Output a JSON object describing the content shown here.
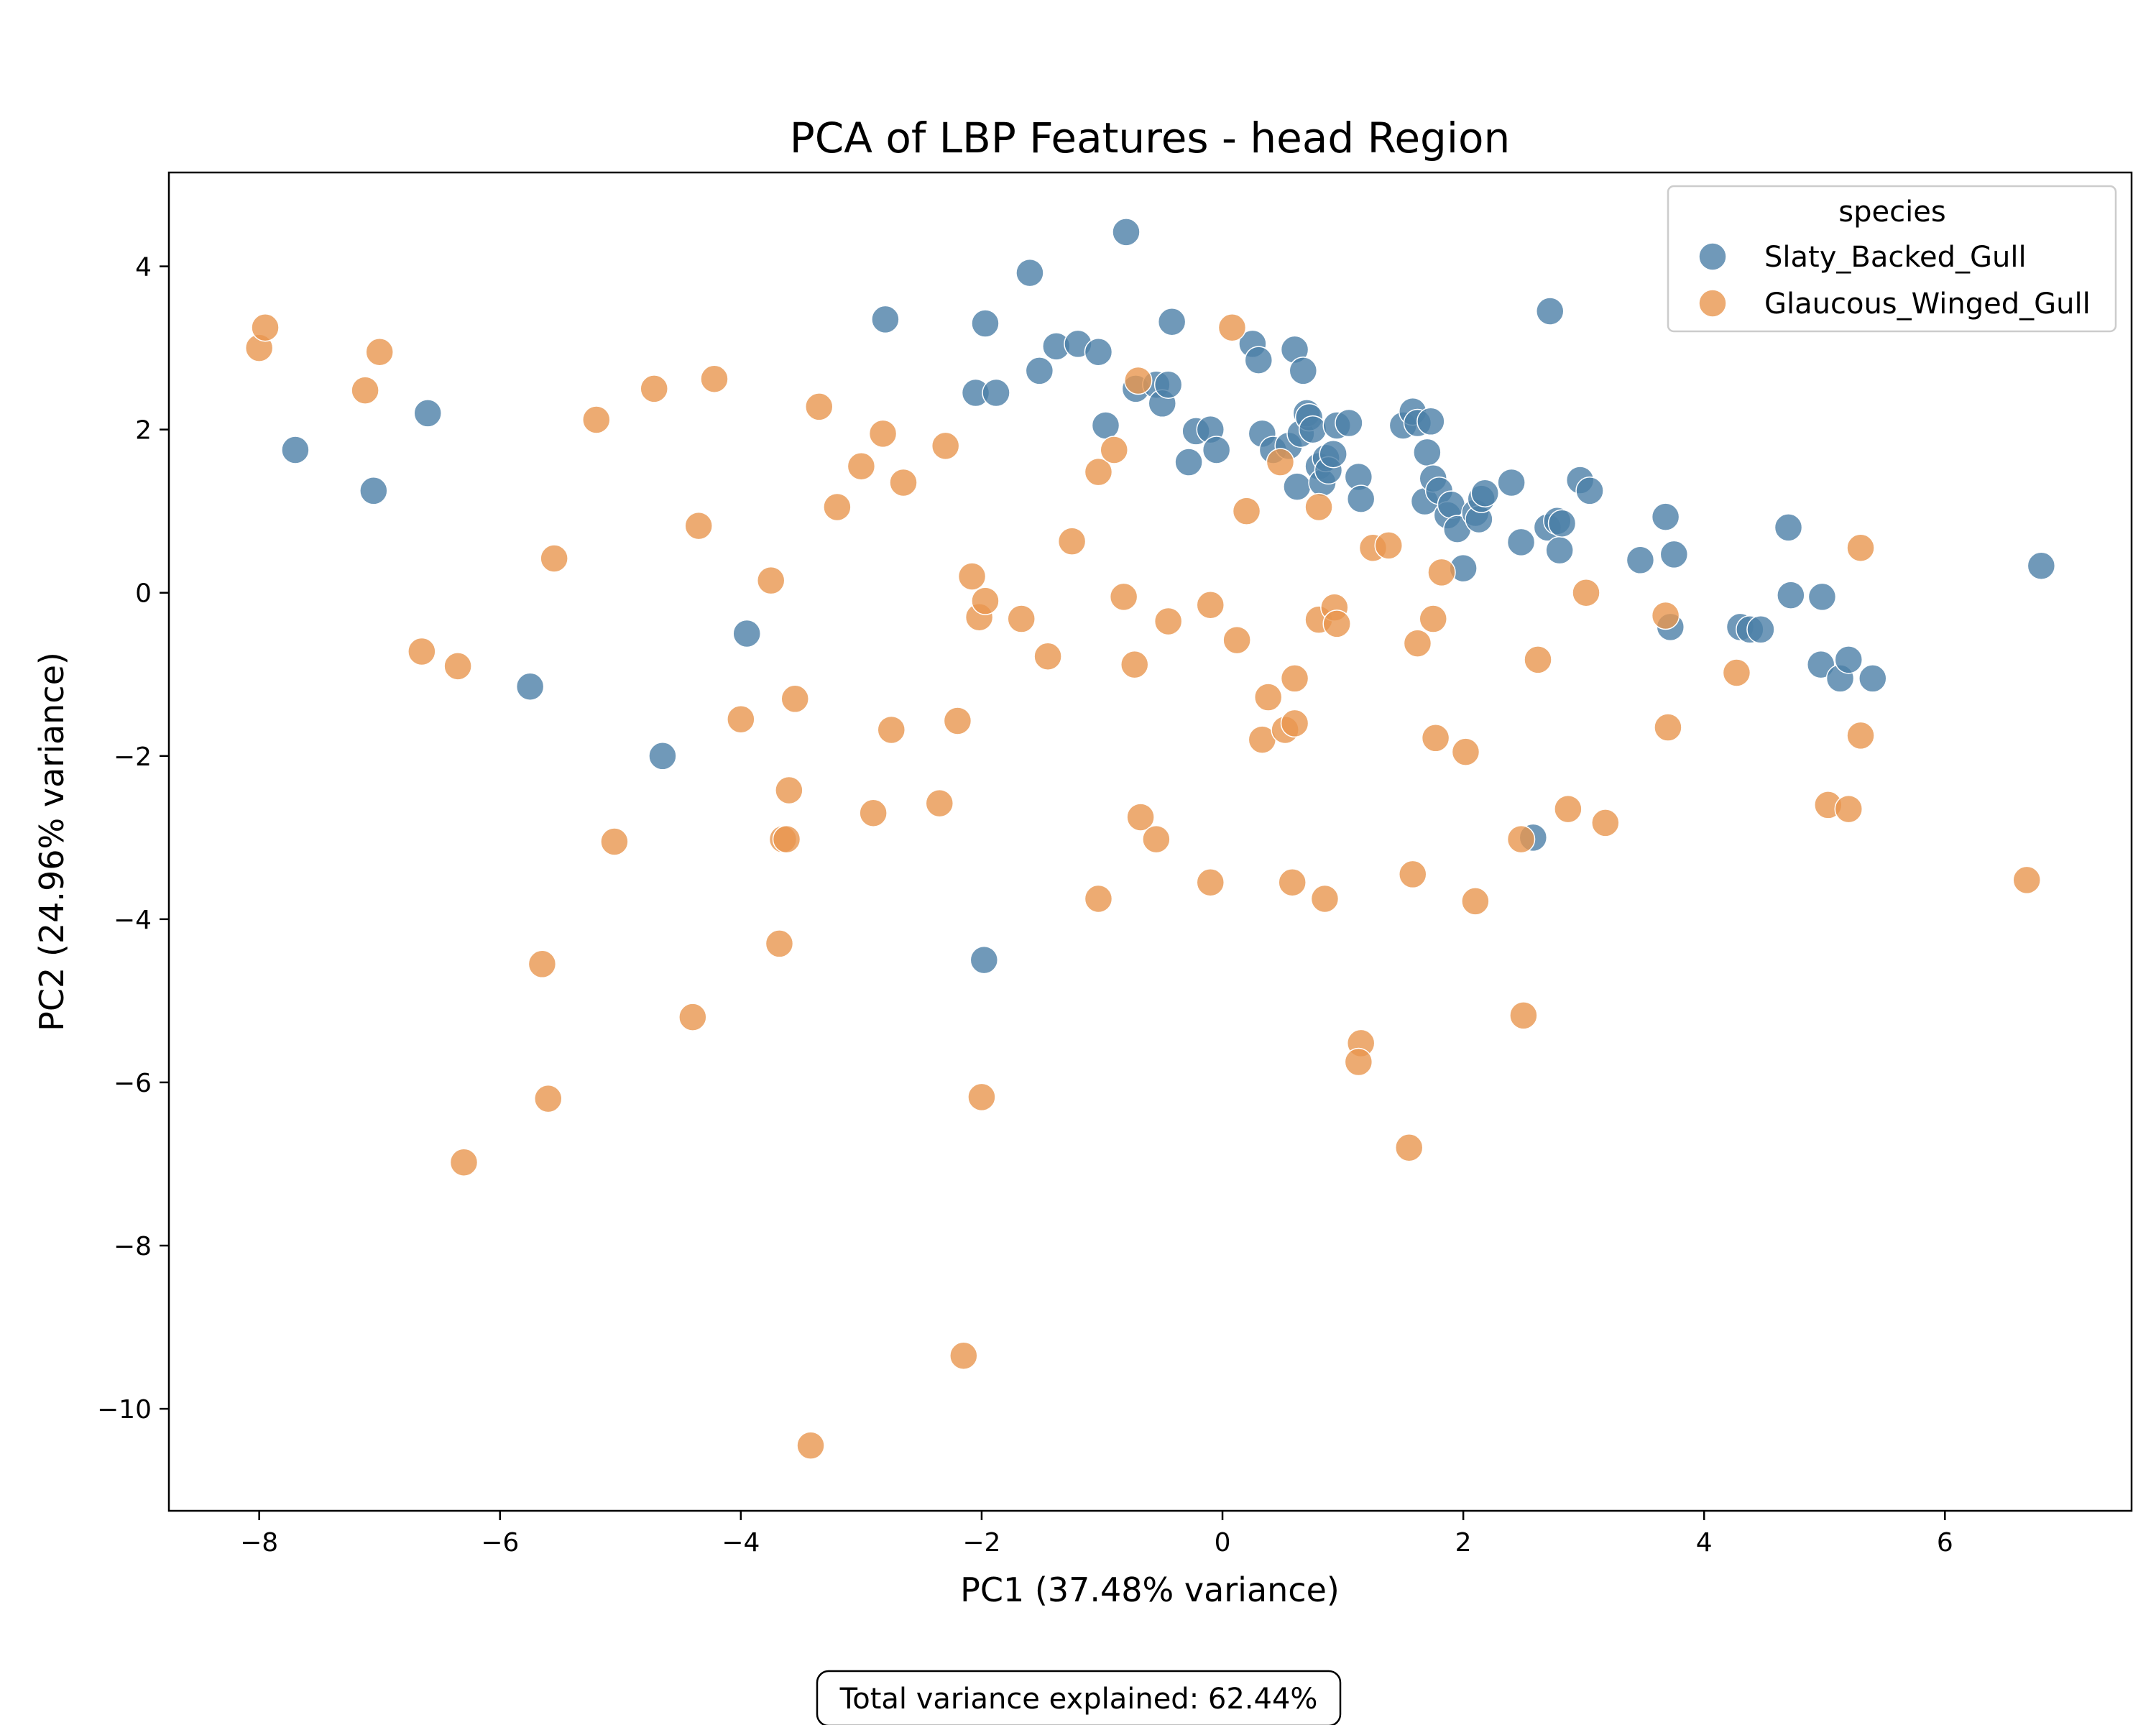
{
  "chart_data": {
    "type": "scatter",
    "title": "PCA of LBP Features - head Region",
    "xlabel": "PC1 (37.48% variance)",
    "ylabel": "PC2 (24.96% variance)",
    "xlim": [
      -8.75,
      7.55
    ],
    "ylim": [
      -11.25,
      5.15
    ],
    "xticks": [
      -8,
      -6,
      -4,
      -2,
      0,
      2,
      4,
      6
    ],
    "yticks": [
      4,
      2,
      0,
      -2,
      -4,
      -6,
      -8,
      -10
    ],
    "xtick_labels": [
      "−8",
      "−6",
      "−4",
      "−2",
      "0",
      "2",
      "4",
      "6"
    ],
    "ytick_labels": [
      "4",
      "2",
      "0",
      "−2",
      "−4",
      "−6",
      "−8",
      "−10"
    ],
    "grid": false,
    "legend": {
      "title": "species",
      "placement": "top-right",
      "entries": [
        "Slaty_Backed_Gull",
        "Glaucous_Winged_Gull"
      ]
    },
    "annotation": "Total variance explained: 62.44%",
    "series": [
      {
        "name": "Slaty_Backed_Gull",
        "color": "#4c7fa8",
        "points": [
          [
            -7.7,
            1.75
          ],
          [
            -7.05,
            1.25
          ],
          [
            -6.6,
            2.2
          ],
          [
            -5.75,
            -1.15
          ],
          [
            -4.65,
            -2.0
          ],
          [
            -3.95,
            -0.5
          ],
          [
            -2.8,
            3.35
          ],
          [
            -1.98,
            -4.5
          ],
          [
            -1.97,
            3.3
          ],
          [
            -2.05,
            2.45
          ],
          [
            -1.88,
            2.45
          ],
          [
            -1.6,
            3.92
          ],
          [
            -1.52,
            2.72
          ],
          [
            -1.38,
            3.02
          ],
          [
            -1.2,
            3.05
          ],
          [
            -1.03,
            2.95
          ],
          [
            -0.97,
            2.05
          ],
          [
            -0.8,
            4.42
          ],
          [
            -0.72,
            2.5
          ],
          [
            -0.55,
            2.55
          ],
          [
            -0.5,
            2.32
          ],
          [
            -0.45,
            2.55
          ],
          [
            -0.42,
            3.32
          ],
          [
            -0.28,
            1.6
          ],
          [
            -0.22,
            1.98
          ],
          [
            -0.1,
            2.0
          ],
          [
            -0.05,
            1.75
          ],
          [
            0.25,
            3.05
          ],
          [
            0.3,
            2.85
          ],
          [
            0.33,
            1.95
          ],
          [
            0.42,
            1.75
          ],
          [
            0.55,
            1.8
          ],
          [
            0.6,
            2.98
          ],
          [
            0.62,
            1.3
          ],
          [
            0.65,
            1.95
          ],
          [
            0.67,
            2.72
          ],
          [
            0.7,
            2.2
          ],
          [
            0.72,
            2.15
          ],
          [
            0.75,
            2.0
          ],
          [
            0.8,
            1.55
          ],
          [
            0.83,
            1.35
          ],
          [
            0.86,
            1.65
          ],
          [
            0.88,
            1.5
          ],
          [
            0.92,
            1.7
          ],
          [
            0.95,
            2.05
          ],
          [
            1.05,
            2.08
          ],
          [
            1.13,
            1.42
          ],
          [
            1.15,
            1.15
          ],
          [
            1.5,
            2.05
          ],
          [
            1.58,
            2.22
          ],
          [
            1.62,
            2.08
          ],
          [
            1.68,
            1.12
          ],
          [
            1.7,
            1.72
          ],
          [
            1.73,
            2.1
          ],
          [
            1.75,
            1.4
          ],
          [
            1.8,
            1.25
          ],
          [
            1.87,
            0.95
          ],
          [
            1.9,
            1.08
          ],
          [
            1.95,
            0.78
          ],
          [
            2.0,
            0.3
          ],
          [
            2.1,
            0.98
          ],
          [
            2.13,
            0.9
          ],
          [
            2.15,
            1.15
          ],
          [
            2.18,
            1.22
          ],
          [
            2.4,
            1.35
          ],
          [
            2.48,
            0.62
          ],
          [
            2.58,
            -3.0
          ],
          [
            2.7,
            0.8
          ],
          [
            2.72,
            3.45
          ],
          [
            2.78,
            0.88
          ],
          [
            2.8,
            0.52
          ],
          [
            2.82,
            0.85
          ],
          [
            2.97,
            1.38
          ],
          [
            3.05,
            1.25
          ],
          [
            3.47,
            0.4
          ],
          [
            3.68,
            0.93
          ],
          [
            3.72,
            -0.42
          ],
          [
            3.75,
            0.47
          ],
          [
            4.3,
            -0.42
          ],
          [
            4.38,
            -0.45
          ],
          [
            4.47,
            -0.45
          ],
          [
            4.7,
            0.8
          ],
          [
            4.72,
            -0.03
          ],
          [
            4.97,
            -0.88
          ],
          [
            4.98,
            -0.05
          ],
          [
            5.13,
            -1.05
          ],
          [
            5.2,
            -0.82
          ],
          [
            5.4,
            -1.05
          ],
          [
            6.8,
            0.33
          ]
        ]
      },
      {
        "name": "Glaucous_Winged_Gull",
        "color": "#e8964f",
        "points": [
          [
            -8.0,
            3.0
          ],
          [
            -7.95,
            3.25
          ],
          [
            -7.12,
            2.48
          ],
          [
            -7.0,
            2.95
          ],
          [
            -6.65,
            -0.72
          ],
          [
            -6.35,
            -0.9
          ],
          [
            -6.3,
            -6.98
          ],
          [
            -5.65,
            -4.55
          ],
          [
            -5.6,
            -6.2
          ],
          [
            -5.55,
            0.42
          ],
          [
            -5.2,
            2.12
          ],
          [
            -5.05,
            -3.05
          ],
          [
            -4.72,
            2.5
          ],
          [
            -4.4,
            -5.2
          ],
          [
            -4.35,
            0.82
          ],
          [
            -4.22,
            2.62
          ],
          [
            -4.0,
            -1.55
          ],
          [
            -3.75,
            0.15
          ],
          [
            -3.68,
            -4.3
          ],
          [
            -3.65,
            -3.02
          ],
          [
            -3.62,
            -3.02
          ],
          [
            -3.6,
            -2.42
          ],
          [
            -3.55,
            -1.3
          ],
          [
            -3.42,
            -10.45
          ],
          [
            -3.35,
            2.28
          ],
          [
            -3.2,
            1.05
          ],
          [
            -3.0,
            1.55
          ],
          [
            -2.9,
            -2.7
          ],
          [
            -2.82,
            1.95
          ],
          [
            -2.75,
            -1.68
          ],
          [
            -2.65,
            1.35
          ],
          [
            -2.35,
            -2.58
          ],
          [
            -2.3,
            1.8
          ],
          [
            -2.2,
            -1.57
          ],
          [
            -2.15,
            -9.35
          ],
          [
            -2.08,
            0.2
          ],
          [
            -2.02,
            -0.3
          ],
          [
            -2.0,
            -6.18
          ],
          [
            -1.97,
            -0.1
          ],
          [
            -1.67,
            -0.32
          ],
          [
            -1.45,
            -0.78
          ],
          [
            -1.25,
            0.63
          ],
          [
            -1.03,
            1.48
          ],
          [
            -1.03,
            -3.75
          ],
          [
            -0.9,
            1.75
          ],
          [
            -0.82,
            -0.05
          ],
          [
            -0.73,
            -0.88
          ],
          [
            -0.7,
            2.6
          ],
          [
            -0.68,
            -2.75
          ],
          [
            -0.55,
            -3.02
          ],
          [
            -0.45,
            -0.35
          ],
          [
            -0.1,
            -0.15
          ],
          [
            -0.1,
            -3.55
          ],
          [
            0.08,
            3.25
          ],
          [
            0.12,
            -0.58
          ],
          [
            0.2,
            1.0
          ],
          [
            0.38,
            -1.28
          ],
          [
            0.33,
            -1.8
          ],
          [
            0.48,
            1.6
          ],
          [
            0.52,
            -1.68
          ],
          [
            0.58,
            -3.55
          ],
          [
            0.6,
            -1.05
          ],
          [
            0.6,
            -1.6
          ],
          [
            0.8,
            1.05
          ],
          [
            0.8,
            -0.33
          ],
          [
            0.85,
            -3.75
          ],
          [
            0.93,
            -0.18
          ],
          [
            0.95,
            -0.38
          ],
          [
            1.15,
            -5.52
          ],
          [
            1.13,
            -5.75
          ],
          [
            1.25,
            0.55
          ],
          [
            1.38,
            0.58
          ],
          [
            1.55,
            -6.8
          ],
          [
            1.58,
            -3.45
          ],
          [
            1.62,
            -0.62
          ],
          [
            1.75,
            -0.32
          ],
          [
            1.77,
            -1.78
          ],
          [
            1.82,
            0.25
          ],
          [
            2.02,
            -1.95
          ],
          [
            2.1,
            -3.78
          ],
          [
            2.48,
            -3.02
          ],
          [
            2.5,
            -5.18
          ],
          [
            2.62,
            -0.82
          ],
          [
            2.87,
            -2.65
          ],
          [
            3.02,
            0.0
          ],
          [
            3.18,
            -2.82
          ],
          [
            3.68,
            -0.28
          ],
          [
            3.7,
            -1.65
          ],
          [
            4.27,
            -0.98
          ],
          [
            5.03,
            -2.6
          ],
          [
            5.2,
            -2.65
          ],
          [
            5.3,
            0.55
          ],
          [
            5.3,
            -1.75
          ],
          [
            6.68,
            -3.52
          ]
        ]
      }
    ]
  }
}
